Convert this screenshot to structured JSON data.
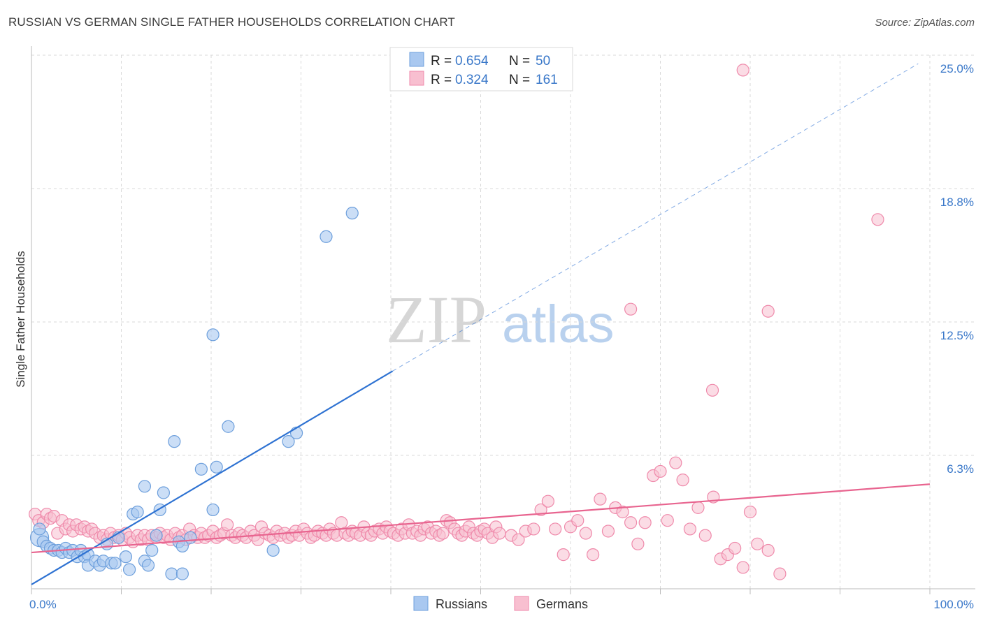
{
  "title": "RUSSIAN VS GERMAN SINGLE FATHER HOUSEHOLDS CORRELATION CHART",
  "source": "Source: ZipAtlas.com",
  "watermark": {
    "part1": "ZIP",
    "part2": "atlas"
  },
  "colors": {
    "russians_fill": "#a9c8f0",
    "russians_stroke": "#6d9fdc",
    "russians_line": "#2e72d2",
    "germans_fill": "#f8bfd0",
    "germans_stroke": "#ef8aab",
    "germans_line": "#e8648f",
    "axis_label": "#3a78c9",
    "grid": "#d9d9d9"
  },
  "legend": {
    "rows": [
      {
        "r_label": "R = ",
        "r_value": "0.654",
        "n_label": "N = ",
        "n_value": "50"
      },
      {
        "r_label": "R = ",
        "r_value": "0.324",
        "n_label": "N = ",
        "n_value": "161"
      }
    ]
  },
  "bottom_legend": [
    "Russians",
    "Germans"
  ],
  "chart_data": {
    "type": "scatter",
    "title": "RUSSIAN VS GERMAN SINGLE FATHER HOUSEHOLDS CORRELATION CHART",
    "ylabel": "Single Father Households",
    "xlabel": "",
    "x_tick_labels": [
      "0.0%",
      "100.0%"
    ],
    "y_tick_labels": [
      "6.3%",
      "12.5%",
      "18.8%",
      "25.0%"
    ],
    "y_tick_values": [
      6.25,
      12.5,
      18.75,
      25.0
    ],
    "xlim": [
      0,
      100
    ],
    "ylim": [
      0,
      25.0
    ],
    "grid": true,
    "legend_position": "top-center",
    "series": [
      {
        "name": "Russians",
        "R": 0.654,
        "N": 50,
        "trend": {
          "x": [
            0,
            40.2
          ],
          "y": [
            0.2,
            10.2
          ],
          "extended_to": [
            98.7,
            24.6
          ]
        },
        "points": [
          [
            0.9,
            2.4
          ],
          [
            0.9,
            2.8
          ],
          [
            1.3,
            2.2
          ],
          [
            1.7,
            2.0
          ],
          [
            2.1,
            1.9
          ],
          [
            2.5,
            1.8
          ],
          [
            3.0,
            1.8
          ],
          [
            3.4,
            1.7
          ],
          [
            3.8,
            1.9
          ],
          [
            4.2,
            1.7
          ],
          [
            4.6,
            1.8
          ],
          [
            5.1,
            1.5
          ],
          [
            5.5,
            1.8
          ],
          [
            5.9,
            1.5
          ],
          [
            6.3,
            1.6
          ],
          [
            6.3,
            1.1
          ],
          [
            7.1,
            1.3
          ],
          [
            7.6,
            1.1
          ],
          [
            8.0,
            1.3
          ],
          [
            8.4,
            2.1
          ],
          [
            8.9,
            1.2
          ],
          [
            9.3,
            1.2
          ],
          [
            9.7,
            2.4
          ],
          [
            10.5,
            1.5
          ],
          [
            10.9,
            0.9
          ],
          [
            11.3,
            3.5
          ],
          [
            11.8,
            3.6
          ],
          [
            12.6,
            1.3
          ],
          [
            13.0,
            1.1
          ],
          [
            13.4,
            1.8
          ],
          [
            13.9,
            2.5
          ],
          [
            14.3,
            3.7
          ],
          [
            14.7,
            4.5
          ],
          [
            15.6,
            0.7
          ],
          [
            16.4,
            2.2
          ],
          [
            16.8,
            2.0
          ],
          [
            16.8,
            0.7
          ],
          [
            17.7,
            2.4
          ],
          [
            18.9,
            5.6
          ],
          [
            20.2,
            3.7
          ],
          [
            21.9,
            7.6
          ],
          [
            26.9,
            1.8
          ],
          [
            28.6,
            6.9
          ],
          [
            29.5,
            7.3
          ],
          [
            12.6,
            4.8
          ],
          [
            15.9,
            6.9
          ],
          [
            20.6,
            5.7
          ],
          [
            20.2,
            11.9
          ],
          [
            32.8,
            16.5
          ],
          [
            35.7,
            17.6
          ]
        ]
      },
      {
        "name": "Germans",
        "R": 0.324,
        "N": 161,
        "trend": {
          "x": [
            0,
            100
          ],
          "y": [
            1.7,
            4.9
          ]
        },
        "points": [
          [
            0.4,
            3.5
          ],
          [
            0.8,
            3.2
          ],
          [
            1.3,
            3.1
          ],
          [
            1.7,
            3.5
          ],
          [
            2.1,
            3.3
          ],
          [
            2.5,
            3.4
          ],
          [
            2.9,
            2.6
          ],
          [
            3.4,
            3.2
          ],
          [
            3.8,
            2.8
          ],
          [
            4.2,
            3.0
          ],
          [
            4.6,
            2.7
          ],
          [
            5.0,
            3.0
          ],
          [
            5.5,
            2.8
          ],
          [
            5.9,
            2.9
          ],
          [
            6.3,
            2.7
          ],
          [
            6.7,
            2.8
          ],
          [
            7.1,
            2.6
          ],
          [
            7.6,
            2.4
          ],
          [
            8.0,
            2.5
          ],
          [
            8.4,
            2.3
          ],
          [
            8.8,
            2.6
          ],
          [
            9.2,
            2.4
          ],
          [
            9.7,
            2.5
          ],
          [
            10.1,
            2.3
          ],
          [
            10.5,
            2.6
          ],
          [
            10.9,
            2.4
          ],
          [
            11.3,
            2.2
          ],
          [
            11.8,
            2.5
          ],
          [
            12.2,
            2.3
          ],
          [
            12.6,
            2.5
          ],
          [
            13.0,
            2.3
          ],
          [
            13.4,
            2.5
          ],
          [
            13.9,
            2.4
          ],
          [
            14.3,
            2.6
          ],
          [
            14.7,
            2.4
          ],
          [
            15.1,
            2.5
          ],
          [
            15.5,
            2.3
          ],
          [
            16.0,
            2.6
          ],
          [
            16.4,
            2.4
          ],
          [
            16.8,
            2.5
          ],
          [
            17.2,
            2.3
          ],
          [
            17.6,
            2.8
          ],
          [
            18.1,
            2.5
          ],
          [
            18.5,
            2.4
          ],
          [
            18.9,
            2.6
          ],
          [
            19.3,
            2.4
          ],
          [
            19.7,
            2.5
          ],
          [
            20.2,
            2.7
          ],
          [
            20.6,
            2.4
          ],
          [
            21.0,
            2.5
          ],
          [
            21.4,
            2.6
          ],
          [
            21.8,
            3.0
          ],
          [
            22.3,
            2.5
          ],
          [
            22.7,
            2.4
          ],
          [
            23.1,
            2.6
          ],
          [
            23.5,
            2.5
          ],
          [
            23.9,
            2.4
          ],
          [
            24.4,
            2.7
          ],
          [
            24.8,
            2.5
          ],
          [
            25.2,
            2.3
          ],
          [
            25.6,
            2.9
          ],
          [
            26.0,
            2.6
          ],
          [
            26.5,
            2.5
          ],
          [
            26.9,
            2.4
          ],
          [
            27.3,
            2.7
          ],
          [
            27.7,
            2.5
          ],
          [
            28.2,
            2.6
          ],
          [
            28.6,
            2.4
          ],
          [
            29.0,
            2.5
          ],
          [
            29.4,
            2.7
          ],
          [
            29.8,
            2.5
          ],
          [
            30.3,
            2.8
          ],
          [
            30.7,
            2.6
          ],
          [
            31.1,
            2.4
          ],
          [
            31.5,
            2.5
          ],
          [
            31.9,
            2.7
          ],
          [
            32.4,
            2.6
          ],
          [
            32.8,
            2.5
          ],
          [
            33.2,
            2.8
          ],
          [
            33.6,
            2.6
          ],
          [
            34.0,
            2.5
          ],
          [
            34.5,
            3.1
          ],
          [
            34.9,
            2.6
          ],
          [
            35.3,
            2.5
          ],
          [
            35.7,
            2.7
          ],
          [
            36.1,
            2.6
          ],
          [
            36.6,
            2.5
          ],
          [
            37.0,
            2.9
          ],
          [
            37.4,
            2.6
          ],
          [
            37.8,
            2.5
          ],
          [
            38.2,
            2.7
          ],
          [
            38.7,
            2.8
          ],
          [
            39.1,
            2.6
          ],
          [
            39.5,
            2.9
          ],
          [
            39.9,
            2.7
          ],
          [
            40.3,
            2.6
          ],
          [
            40.8,
            2.5
          ],
          [
            41.2,
            2.8
          ],
          [
            41.6,
            2.6
          ],
          [
            42.0,
            3.0
          ],
          [
            42.4,
            2.6
          ],
          [
            42.9,
            2.7
          ],
          [
            43.3,
            2.5
          ],
          [
            43.7,
            2.8
          ],
          [
            44.1,
            2.9
          ],
          [
            44.5,
            2.6
          ],
          [
            45.0,
            2.7
          ],
          [
            45.4,
            2.5
          ],
          [
            45.8,
            2.6
          ],
          [
            46.2,
            3.2
          ],
          [
            46.6,
            3.1
          ],
          [
            47.1,
            2.8
          ],
          [
            47.5,
            2.6
          ],
          [
            47.9,
            2.5
          ],
          [
            48.3,
            2.7
          ],
          [
            48.7,
            2.9
          ],
          [
            49.2,
            2.6
          ],
          [
            49.6,
            2.5
          ],
          [
            50.0,
            2.7
          ],
          [
            50.4,
            2.8
          ],
          [
            50.8,
            2.6
          ],
          [
            51.3,
            2.4
          ],
          [
            51.7,
            2.9
          ],
          [
            52.1,
            2.6
          ],
          [
            53.4,
            2.5
          ],
          [
            54.2,
            2.3
          ],
          [
            55.0,
            2.7
          ],
          [
            55.9,
            2.8
          ],
          [
            56.7,
            3.7
          ],
          [
            57.5,
            4.1
          ],
          [
            58.3,
            2.8
          ],
          [
            59.2,
            1.6
          ],
          [
            60.0,
            2.9
          ],
          [
            60.8,
            3.2
          ],
          [
            61.7,
            2.6
          ],
          [
            62.5,
            1.6
          ],
          [
            63.3,
            4.2
          ],
          [
            64.2,
            2.7
          ],
          [
            65.0,
            3.8
          ],
          [
            65.8,
            3.6
          ],
          [
            66.7,
            3.1
          ],
          [
            67.5,
            2.1
          ],
          [
            68.3,
            3.1
          ],
          [
            69.2,
            5.3
          ],
          [
            70.0,
            5.5
          ],
          [
            70.8,
            3.2
          ],
          [
            71.7,
            5.9
          ],
          [
            72.5,
            5.1
          ],
          [
            73.3,
            2.8
          ],
          [
            74.2,
            3.8
          ],
          [
            75.0,
            2.5
          ],
          [
            75.9,
            4.3
          ],
          [
            76.7,
            1.4
          ],
          [
            77.5,
            1.6
          ],
          [
            78.3,
            1.9
          ],
          [
            79.2,
            1.0
          ],
          [
            80.0,
            3.6
          ],
          [
            80.8,
            2.1
          ],
          [
            82.0,
            1.8
          ],
          [
            83.3,
            0.7
          ],
          [
            66.7,
            13.1
          ],
          [
            75.8,
            9.3
          ],
          [
            79.2,
            24.3
          ],
          [
            82.0,
            13.0
          ],
          [
            94.2,
            17.3
          ]
        ]
      }
    ]
  }
}
